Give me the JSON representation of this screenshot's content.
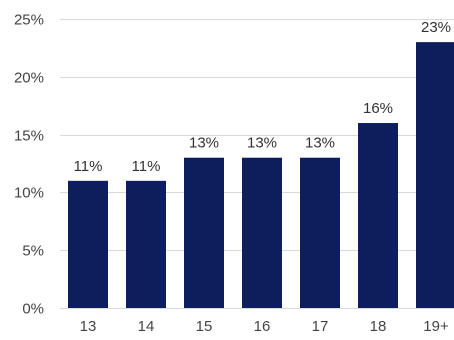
{
  "chart_data": {
    "type": "bar",
    "categories": [
      "13",
      "14",
      "15",
      "16",
      "17",
      "18",
      "19+"
    ],
    "values": [
      11,
      11,
      13,
      13,
      13,
      16,
      23
    ],
    "data_labels": [
      "11%",
      "11%",
      "13%",
      "13%",
      "13%",
      "16%",
      "23%"
    ],
    "y_ticks": [
      0,
      5,
      10,
      15,
      20,
      25
    ],
    "y_tick_labels": [
      "0%",
      "5%",
      "10%",
      "15%",
      "20%",
      "25%"
    ],
    "ylim": [
      0,
      25
    ],
    "grid": true,
    "bar_color": "#0c1f5c",
    "grid_color": "#d9d9d9",
    "title": "",
    "xlabel": "",
    "ylabel": ""
  }
}
